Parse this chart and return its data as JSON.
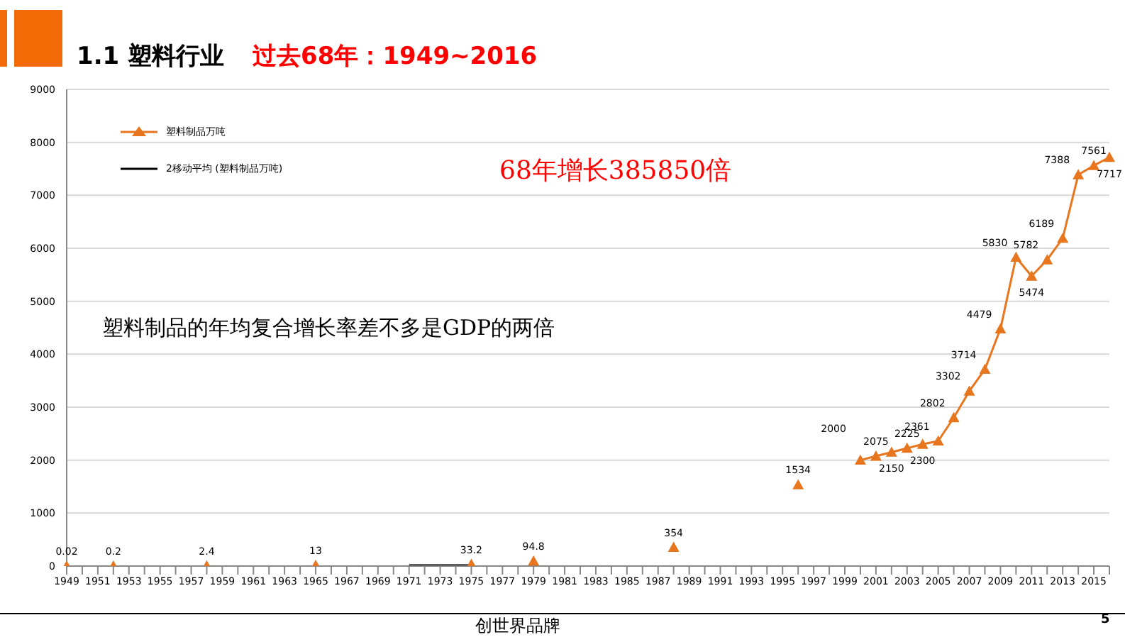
{
  "chart_data": {
    "type": "line",
    "title": "1.1  塑料行业",
    "subtitle": "过去68年：1949~2016",
    "categories": [
      "1949",
      null,
      "1951",
      null,
      "1953",
      null,
      "1955",
      null,
      "1957",
      null,
      "1959",
      null,
      "1961",
      null,
      "1963",
      null,
      "1965",
      null,
      "1967",
      null,
      "1969",
      null,
      "1971",
      null,
      "1973",
      null,
      "1975",
      null,
      "1977",
      null,
      "1979",
      null,
      "1981",
      null,
      "1983",
      null,
      "1985",
      null,
      "1987",
      null,
      "1989",
      null,
      "1991",
      null,
      "1993",
      null,
      "1995",
      null,
      "1997",
      null,
      "1999",
      null,
      "2001",
      null,
      "2003",
      null,
      "2005",
      null,
      "2007",
      null,
      "2009",
      null,
      "2011",
      null,
      "2013",
      null,
      "2015",
      null
    ],
    "series": [
      {
        "name": "塑料制品万吨",
        "color": "#e8761e",
        "marker": "triangle",
        "value_labels": [
          "0.02",
          null,
          null,
          "0.2",
          null,
          null,
          null,
          null,
          null,
          "2.4",
          null,
          null,
          null,
          null,
          null,
          null,
          "13",
          null,
          null,
          null,
          null,
          null,
          null,
          null,
          null,
          null,
          "33.2",
          null,
          null,
          null,
          "94.8",
          null,
          null,
          null,
          null,
          null,
          null,
          null,
          null,
          "354",
          null,
          null,
          null,
          null,
          null,
          null,
          null,
          "1534",
          null,
          null,
          null,
          "2000",
          "2075",
          "2150",
          "2225",
          "2300",
          "2361",
          "2802",
          "3302",
          "3714",
          "4479",
          "5830",
          "5474",
          "5782",
          "6189",
          "7388",
          "7561",
          "7717"
        ],
        "values": [
          0.02,
          null,
          null,
          0.2,
          null,
          null,
          null,
          null,
          null,
          2.4,
          null,
          null,
          null,
          null,
          null,
          null,
          13,
          null,
          null,
          null,
          null,
          null,
          null,
          null,
          null,
          null,
          33.2,
          null,
          null,
          null,
          94.8,
          null,
          null,
          null,
          null,
          null,
          null,
          null,
          null,
          354,
          null,
          null,
          null,
          null,
          null,
          null,
          null,
          1534,
          null,
          null,
          null,
          2000,
          2075,
          2150,
          2225,
          2300,
          2361,
          2802,
          3302,
          3714,
          4479,
          5830,
          5474,
          5782,
          6189,
          7388,
          7561,
          7717
        ]
      },
      {
        "name": "2移动平均 (塑料制品万吨)",
        "color": "#000000",
        "marker": "none",
        "values": [
          null,
          null,
          null,
          null,
          null,
          null,
          null,
          null,
          null,
          null,
          null,
          null,
          null,
          null,
          null,
          null,
          null,
          null,
          null,
          null,
          null,
          null,
          20,
          20,
          20,
          20,
          20,
          null,
          null,
          null,
          null,
          null,
          null,
          null,
          null,
          null,
          null,
          null,
          null,
          null,
          null,
          null,
          null,
          null,
          null,
          null,
          null,
          null,
          null,
          null,
          null,
          null,
          null,
          null,
          null,
          null,
          null,
          null,
          null,
          null,
          null,
          null,
          null,
          null,
          null,
          null,
          null,
          null
        ]
      }
    ],
    "ylim": [
      0,
      9000
    ],
    "yticks": [
      0,
      1000,
      2000,
      3000,
      4000,
      5000,
      6000,
      7000,
      8000,
      9000
    ],
    "grid": "y",
    "legend": "top left",
    "annotations": [
      "68年增长385850倍",
      "塑料制品的年均复合增长率差不多是GDP的两倍",
      "创世界品牌",
      "5"
    ]
  }
}
